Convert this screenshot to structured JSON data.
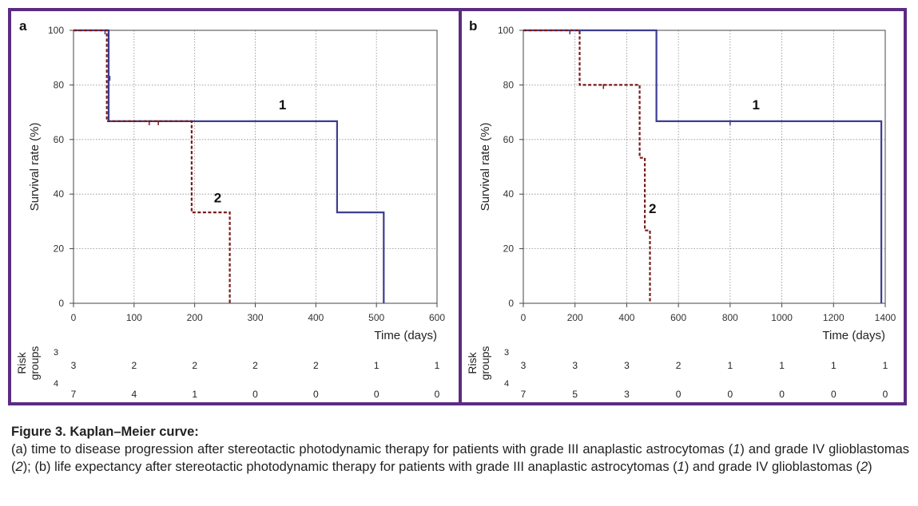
{
  "chart_data": [
    {
      "type": "line",
      "step": true,
      "panel_label": "a",
      "ylabel": "Survival rate (%)",
      "xlabel": "Time (days)",
      "xlim": [
        0,
        600
      ],
      "ylim": [
        0,
        100
      ],
      "xticks": [
        0,
        100,
        200,
        300,
        400,
        500,
        600
      ],
      "yticks": [
        0,
        20,
        40,
        60,
        80,
        100
      ],
      "grid": true,
      "series": [
        {
          "label": "1",
          "color": "#3d3d8f",
          "dash": false,
          "points": [
            [
              0,
              100
            ],
            [
              58,
              100
            ],
            [
              58,
              66.7
            ],
            [
              435,
              66.7
            ],
            [
              435,
              33.3
            ],
            [
              512,
              33.3
            ],
            [
              512,
              0
            ]
          ],
          "censored": [
            [
              52,
              100
            ],
            [
              60,
              83
            ]
          ],
          "label_at": [
            345,
            71
          ]
        },
        {
          "label": "2",
          "color": "#7a1b1b",
          "dash": true,
          "points": [
            [
              0,
              100
            ],
            [
              55,
              100
            ],
            [
              55,
              66.7
            ],
            [
              195,
              66.7
            ],
            [
              195,
              33.3
            ],
            [
              258,
              33.3
            ],
            [
              258,
              0
            ]
          ],
          "censored": [
            [
              125,
              66.7
            ],
            [
              140,
              66.7
            ]
          ],
          "label_at": [
            238,
            37
          ]
        }
      ],
      "risk_table": {
        "title": "Risk groups",
        "group_ids": [
          "3",
          "4"
        ],
        "times": [
          0,
          100,
          200,
          300,
          400,
          500,
          600
        ],
        "rows": [
          [
            3,
            2,
            2,
            2,
            2,
            1,
            1
          ],
          [
            7,
            4,
            1,
            0,
            0,
            0,
            0
          ]
        ]
      }
    },
    {
      "type": "line",
      "step": true,
      "panel_label": "b",
      "ylabel": "Survival rate (%)",
      "xlabel": "Time (days)",
      "xlim": [
        0,
        1400
      ],
      "ylim": [
        0,
        100
      ],
      "xticks": [
        0,
        200,
        400,
        600,
        800,
        1000,
        1200,
        1400
      ],
      "yticks": [
        0,
        20,
        40,
        60,
        80,
        100
      ],
      "grid": true,
      "series": [
        {
          "label": "1",
          "color": "#3d3d8f",
          "dash": false,
          "points": [
            [
              0,
              100
            ],
            [
              515,
              100
            ],
            [
              515,
              66.7
            ],
            [
              1385,
              66.7
            ],
            [
              1385,
              0
            ]
          ],
          "censored": [
            [
              180,
              100
            ],
            [
              800,
              66.7
            ]
          ],
          "label_at": [
            900,
            71
          ]
        },
        {
          "label": "2",
          "color": "#7a1b1b",
          "dash": true,
          "points": [
            [
              0,
              100
            ],
            [
              218,
              100
            ],
            [
              218,
              80
            ],
            [
              450,
              80
            ],
            [
              450,
              53.3
            ],
            [
              470,
              53.3
            ],
            [
              470,
              26.7
            ],
            [
              490,
              26.7
            ],
            [
              490,
              0
            ]
          ],
          "censored": [
            [
              310,
              80
            ]
          ],
          "label_at": [
            500,
            33
          ]
        }
      ],
      "risk_table": {
        "title": "Risk groups",
        "group_ids": [
          "3",
          "4"
        ],
        "times": [
          0,
          200,
          400,
          600,
          800,
          1000,
          1200,
          1400
        ],
        "rows": [
          [
            3,
            3,
            3,
            2,
            1,
            1,
            1,
            1
          ],
          [
            7,
            5,
            3,
            0,
            0,
            0,
            0,
            0
          ]
        ]
      }
    }
  ],
  "caption": {
    "title": "Figure 3. Kaplan–Meier curve:",
    "p1": "(a) time to disease progression after stereotactic photodynamic therapy for patients with grade III anaplastic astrocytomas (",
    "n1": "1",
    "p2": ") and grade IV glioblastomas (",
    "n2": "2",
    "p3": "); (b) life expectancy after stereotactic photodynamic therapy for patients with grade III anaplastic astrocytomas (",
    "n3": "1",
    "p4": ") and grade IV glioblastomas (",
    "n4": "2",
    "p5": ")"
  }
}
